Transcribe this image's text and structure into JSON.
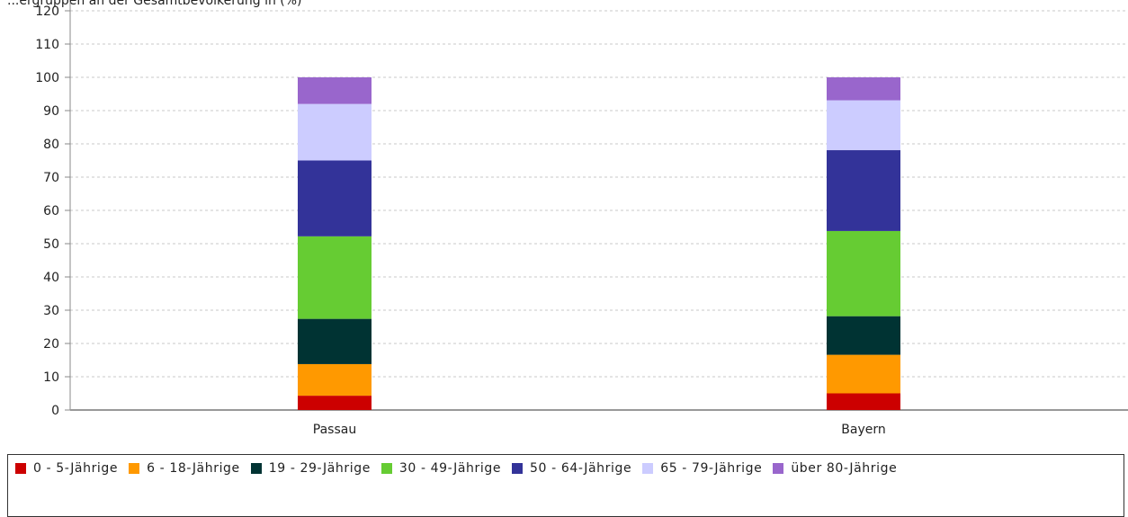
{
  "chart_data": {
    "type": "bar",
    "stacked": true,
    "title": "...ergruppen an der Gesamtbevölkerung in (%)",
    "categories": [
      "Passau",
      "Bayern"
    ],
    "ylim": [
      0,
      120
    ],
    "yticks": [
      0,
      10,
      20,
      30,
      40,
      50,
      60,
      70,
      80,
      90,
      100,
      110,
      120
    ],
    "grid": true,
    "legend_position": "bottom",
    "series": [
      {
        "name": "0 - 5-Jährige",
        "color": "#cc0000",
        "values": [
          4.3,
          5.0
        ]
      },
      {
        "name": "6 - 18-Jährige",
        "color": "#ff9900",
        "values": [
          9.5,
          11.6
        ]
      },
      {
        "name": "19 - 29-Jährige",
        "color": "#003333",
        "values": [
          13.6,
          11.6
        ]
      },
      {
        "name": "30 - 49-Jährige",
        "color": "#66cc33",
        "values": [
          24.8,
          25.6
        ]
      },
      {
        "name": "50 - 64-Jährige",
        "color": "#333399",
        "values": [
          22.8,
          24.3
        ]
      },
      {
        "name": "65 - 79-Jährige",
        "color": "#ccccff",
        "values": [
          17.0,
          15.0
        ]
      },
      {
        "name": "über 80-Jährige",
        "color": "#9966cc",
        "values": [
          8.0,
          6.9
        ]
      }
    ]
  }
}
